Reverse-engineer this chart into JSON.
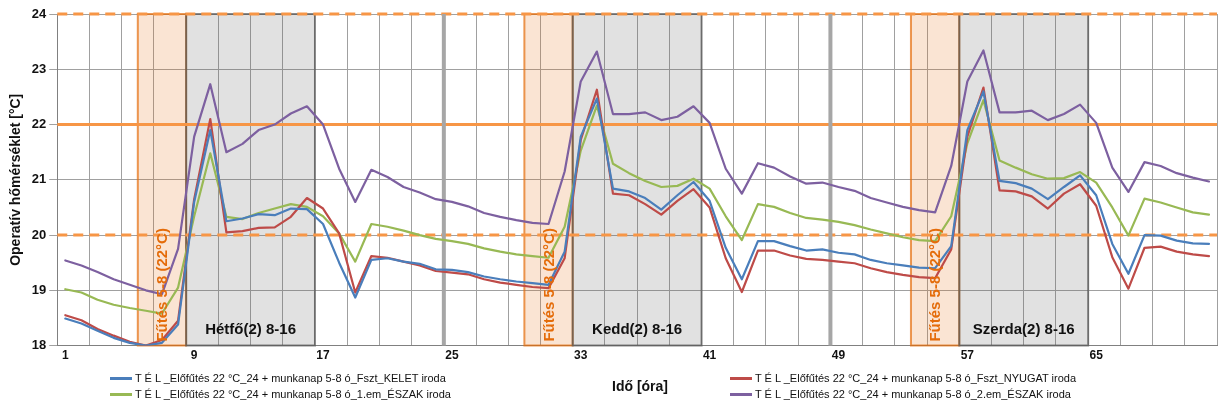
{
  "chart_data": {
    "type": "line",
    "xlabel": "Idő [óra]",
    "ylabel": "Operatív hőmérséklet [°C]",
    "x": [
      1,
      2,
      3,
      4,
      5,
      6,
      7,
      8,
      9,
      10,
      11,
      12,
      13,
      14,
      15,
      16,
      17,
      18,
      19,
      20,
      21,
      22,
      23,
      24,
      25,
      26,
      27,
      28,
      29,
      30,
      31,
      32,
      33,
      34,
      35,
      36,
      37,
      38,
      39,
      40,
      41,
      42,
      43,
      44,
      45,
      46,
      47,
      48,
      49,
      50,
      51,
      52,
      53,
      54,
      55,
      56,
      57,
      58,
      59,
      60,
      61,
      62,
      63,
      64,
      65,
      66,
      67,
      68,
      69,
      70,
      71,
      72
    ],
    "xlim": [
      0.5,
      72.5
    ],
    "xticks": [
      {
        "value": 0.5,
        "label": null
      },
      1,
      {
        "value": 2.5,
        "label": null
      },
      {
        "value": 4.5,
        "label": null
      },
      {
        "value": 6.5,
        "label": null
      },
      {
        "value": 8.5,
        "label": null
      },
      9,
      {
        "value": 10.5,
        "label": null
      },
      {
        "value": 12.5,
        "label": null
      },
      {
        "value": 14.5,
        "label": null
      },
      {
        "value": 16.5,
        "label": null
      },
      17,
      {
        "value": 18.5,
        "label": null
      },
      {
        "value": 20.5,
        "label": null
      },
      {
        "value": 22.5,
        "label": null
      },
      25,
      {
        "value": 26.5,
        "label": null
      },
      {
        "value": 28.5,
        "label": null
      },
      {
        "value": 30.5,
        "label": null
      },
      {
        "value": 32.5,
        "label": null
      },
      33,
      {
        "value": 34.5,
        "label": null
      },
      {
        "value": 36.5,
        "label": null
      },
      {
        "value": 38.5,
        "label": null
      },
      {
        "value": 40.5,
        "label": null
      },
      41,
      {
        "value": 42.5,
        "label": null
      },
      {
        "value": 44.5,
        "label": null
      },
      {
        "value": 46.5,
        "label": null
      },
      49,
      {
        "value": 50.5,
        "label": null
      },
      {
        "value": 52.5,
        "label": null
      },
      {
        "value": 54.5,
        "label": null
      },
      {
        "value": 56.5,
        "label": null
      },
      57,
      {
        "value": 58.5,
        "label": null
      },
      {
        "value": 60.5,
        "label": null
      },
      {
        "value": 62.5,
        "label": null
      },
      {
        "value": 64.5,
        "label": null
      },
      65,
      {
        "value": 66.5,
        "label": null
      },
      {
        "value": 68.5,
        "label": null
      },
      {
        "value": 70.5,
        "label": null
      },
      {
        "value": 72.5,
        "label": null
      }
    ],
    "ylim": [
      18,
      24
    ],
    "yticks": [
      18,
      19,
      20,
      21,
      22,
      23,
      24
    ],
    "grid": true,
    "legend": "bottom",
    "marker": "none",
    "line_style": "solid",
    "series": [
      {
        "name": "T É L _Előfűtés 22 °C_24 + munkanap 5-8 ó_Fszt_KELET iroda",
        "color": "#4a7ebb",
        "values": [
          18.49,
          18.4,
          18.27,
          18.14,
          18.05,
          18.0,
          18.05,
          18.38,
          20.6,
          21.9,
          20.25,
          20.3,
          20.38,
          20.36,
          20.48,
          20.47,
          20.2,
          19.5,
          18.87,
          19.55,
          19.58,
          19.52,
          19.48,
          19.38,
          19.37,
          19.33,
          19.25,
          19.2,
          19.16,
          19.13,
          19.1,
          19.7,
          21.78,
          22.47,
          20.84,
          20.79,
          20.67,
          20.46,
          20.72,
          20.96,
          20.62,
          19.77,
          19.2,
          19.89,
          19.89,
          19.8,
          19.72,
          19.74,
          19.68,
          19.65,
          19.55,
          19.49,
          19.45,
          19.41,
          19.4,
          19.8,
          21.9,
          22.6,
          20.98,
          20.94,
          20.84,
          20.65,
          20.87,
          21.08,
          20.72,
          19.84,
          19.3,
          20.0,
          19.99,
          19.9,
          19.85,
          19.84
        ]
      },
      {
        "name": "T É L _Előfűtés 22 °C_24 + munkanap 5-8 ó_Fszt_NYUGAT iroda",
        "color": "#be4b48",
        "values": [
          18.55,
          18.46,
          18.3,
          18.18,
          18.07,
          18.0,
          18.1,
          18.45,
          20.65,
          22.1,
          20.05,
          20.07,
          20.13,
          20.14,
          20.33,
          20.67,
          20.48,
          20.03,
          18.96,
          19.62,
          19.59,
          19.52,
          19.45,
          19.35,
          19.32,
          19.29,
          19.2,
          19.14,
          19.1,
          19.06,
          19.04,
          19.58,
          21.72,
          22.63,
          20.75,
          20.72,
          20.56,
          20.37,
          20.62,
          20.83,
          20.5,
          19.58,
          18.97,
          19.72,
          19.72,
          19.63,
          19.57,
          19.55,
          19.52,
          19.49,
          19.4,
          19.33,
          19.28,
          19.24,
          19.22,
          19.74,
          21.78,
          22.67,
          20.81,
          20.79,
          20.7,
          20.48,
          20.75,
          20.92,
          20.53,
          19.6,
          19.03,
          19.77,
          19.79,
          19.7,
          19.65,
          19.62
        ]
      },
      {
        "name": "T É L _Előfűtés 22 °C_24 + munkanap 5-8 ó_1.em_ÉSZAK iroda",
        "color": "#98b954",
        "values": [
          19.02,
          18.96,
          18.83,
          18.74,
          18.68,
          18.63,
          18.58,
          19.05,
          20.34,
          21.48,
          20.33,
          20.29,
          20.4,
          20.48,
          20.56,
          20.51,
          20.34,
          20.03,
          19.52,
          20.2,
          20.15,
          20.08,
          20.0,
          19.93,
          19.89,
          19.84,
          19.76,
          19.7,
          19.65,
          19.62,
          19.59,
          20.15,
          21.53,
          22.34,
          21.29,
          21.12,
          20.98,
          20.87,
          20.89,
          21.02,
          20.84,
          20.34,
          19.91,
          20.56,
          20.51,
          20.4,
          20.31,
          20.28,
          20.24,
          20.18,
          20.1,
          20.03,
          19.96,
          19.91,
          19.89,
          20.34,
          21.66,
          22.44,
          21.35,
          21.22,
          21.1,
          21.02,
          21.03,
          21.14,
          20.95,
          20.5,
          19.99,
          20.66,
          20.59,
          20.5,
          20.41,
          20.37
        ]
      },
      {
        "name": "T É L _Előfűtés 22 °C_24 + munkanap 5-8 ó_2.em_ÉSZAK iroda",
        "color": "#7d60a0",
        "values": [
          19.54,
          19.45,
          19.33,
          19.2,
          19.1,
          19.0,
          18.93,
          19.75,
          21.78,
          22.73,
          21.5,
          21.65,
          21.9,
          22.0,
          22.2,
          22.33,
          22.0,
          21.2,
          20.6,
          21.18,
          21.05,
          20.87,
          20.77,
          20.65,
          20.6,
          20.52,
          20.4,
          20.33,
          20.27,
          20.22,
          20.2,
          21.15,
          22.78,
          23.32,
          22.19,
          22.19,
          22.22,
          22.08,
          22.14,
          22.33,
          22.03,
          21.2,
          20.75,
          21.3,
          21.22,
          21.06,
          20.93,
          20.95,
          20.87,
          20.8,
          20.67,
          20.59,
          20.51,
          20.45,
          20.41,
          21.25,
          22.78,
          23.34,
          22.22,
          22.22,
          22.25,
          22.08,
          22.19,
          22.36,
          22.03,
          21.22,
          20.78,
          21.32,
          21.25,
          21.12,
          21.04,
          20.97
        ]
      }
    ],
    "bands": [
      {
        "axis": "x",
        "from": 5.5,
        "to": 8.5,
        "label": "Fűtés 5-8 (22°C)",
        "color": "#e46c0a"
      },
      {
        "axis": "x",
        "from": 8.5,
        "to": 16.5,
        "label": "Hétfő(2) 8-16",
        "color": "#595959"
      },
      {
        "axis": "x",
        "from": 29.5,
        "to": 32.5,
        "label": "Fűtés 5-8 (22°C)",
        "color": "#e46c0a"
      },
      {
        "axis": "x",
        "from": 32.5,
        "to": 40.5,
        "label": "Kedd(2) 8-16",
        "color": "#595959"
      },
      {
        "axis": "x",
        "from": 53.5,
        "to": 56.5,
        "label": "Fűtés 5-8 (22°C)",
        "color": "#e46c0a"
      },
      {
        "axis": "x",
        "from": 56.5,
        "to": 64.5,
        "label": "Szerda(2) 8-16",
        "color": "#595959"
      }
    ],
    "ref_lines": [
      {
        "axis": "y",
        "value": 20,
        "color": "#f79646",
        "line_style": "dashed"
      },
      {
        "axis": "y",
        "value": 22,
        "color": "#f79646",
        "line_style": "solid"
      },
      {
        "axis": "y",
        "value": 24,
        "color": "#f79646",
        "line_style": "dashed"
      },
      {
        "axis": "x",
        "value": 24.5,
        "color": "#a6a6a6",
        "line_style": "solid"
      },
      {
        "axis": "x",
        "value": 48.5,
        "color": "#a6a6a6",
        "line_style": "solid"
      }
    ]
  }
}
